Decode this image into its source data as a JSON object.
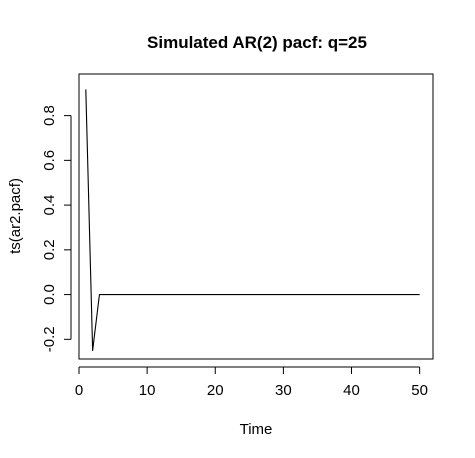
{
  "chart_data": {
    "type": "line",
    "title": "Simulated AR(2) pacf: q=25",
    "xlabel": "Time",
    "ylabel": "ts(ar2.pacf)",
    "xlim": [
      0,
      51.96
    ],
    "ylim": [
      -0.288,
      0.986
    ],
    "xticks": [
      0,
      10,
      20,
      30,
      40,
      50
    ],
    "xtick_labels": [
      "0",
      "10",
      "20",
      "30",
      "40",
      "50"
    ],
    "yticks": [
      -0.2,
      0.0,
      0.2,
      0.4,
      0.6,
      0.8
    ],
    "ytick_labels": [
      "-0.2",
      "0.0",
      "0.2",
      "0.4",
      "0.6",
      "0.8"
    ],
    "grid": false,
    "x": [
      1,
      2,
      3,
      4,
      5,
      6,
      7,
      8,
      9,
      10,
      11,
      12,
      13,
      14,
      15,
      16,
      17,
      18,
      19,
      20,
      21,
      22,
      23,
      24,
      25,
      26,
      27,
      28,
      29,
      30,
      31,
      32,
      33,
      34,
      35,
      36,
      37,
      38,
      39,
      40,
      41,
      42,
      43,
      44,
      45,
      46,
      47,
      48,
      49,
      50
    ],
    "values": [
      0.917,
      -0.25,
      0,
      0,
      0,
      0,
      0,
      0,
      0,
      0,
      0,
      0,
      0,
      0,
      0,
      0,
      0,
      0,
      0,
      0,
      0,
      0,
      0,
      0,
      0,
      0,
      0,
      0,
      0,
      0,
      0,
      0,
      0,
      0,
      0,
      0,
      0,
      0,
      0,
      0,
      0,
      0,
      0,
      0,
      0,
      0,
      0,
      0,
      0,
      0
    ],
    "line_color": "#000000"
  }
}
